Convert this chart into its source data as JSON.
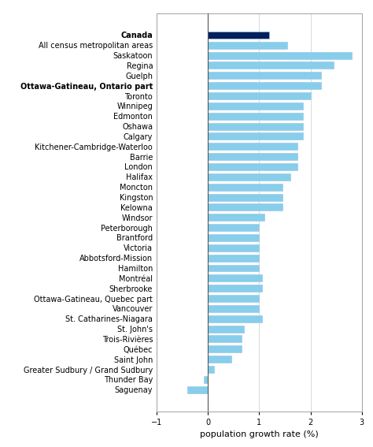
{
  "xlabel": "population growth rate (%)",
  "categories": [
    "Canada",
    "All census metropolitan areas",
    "Saskatoon",
    "Regina",
    "Guelph",
    "Ottawa-Gatineau, Ontario part",
    "Toronto",
    "Winnipeg",
    "Edmonton",
    "Oshawa",
    "Calgary",
    "Kitchener-Cambridge-Waterloo",
    "Barrie",
    "London",
    "Halifax",
    "Moncton",
    "Kingston",
    "Kelowna",
    "Windsor",
    "Peterborough",
    "Brantford",
    "Victoria",
    "Abbotsford-Mission",
    "Hamilton",
    "Montréal",
    "Sherbrooke",
    "Ottawa-Gatineau, Quebec part",
    "Vancouver",
    "St. Catharines-Niagara",
    "St. John's",
    "Trois-Rivières",
    "Québec",
    "Saint John",
    "Greater Sudbury / Grand Sudbury",
    "Thunder Bay",
    "Saguenay"
  ],
  "values": [
    1.2,
    1.55,
    2.8,
    2.45,
    2.2,
    2.2,
    2.0,
    1.85,
    1.85,
    1.85,
    1.85,
    1.75,
    1.75,
    1.75,
    1.6,
    1.45,
    1.45,
    1.45,
    1.1,
    1.0,
    1.0,
    1.0,
    1.0,
    1.0,
    1.05,
    1.05,
    1.0,
    1.0,
    1.05,
    0.7,
    0.65,
    0.65,
    0.45,
    0.12,
    -0.08,
    -0.4
  ],
  "bar_colors": [
    "#00205b",
    "#87ceeb",
    "#87ceeb",
    "#87ceeb",
    "#87ceeb",
    "#87ceeb",
    "#87ceeb",
    "#87ceeb",
    "#87ceeb",
    "#87ceeb",
    "#87ceeb",
    "#87ceeb",
    "#87ceeb",
    "#87ceeb",
    "#87ceeb",
    "#87ceeb",
    "#87ceeb",
    "#87ceeb",
    "#87ceeb",
    "#87ceeb",
    "#87ceeb",
    "#87ceeb",
    "#87ceeb",
    "#87ceeb",
    "#87ceeb",
    "#87ceeb",
    "#87ceeb",
    "#87ceeb",
    "#87ceeb",
    "#87ceeb",
    "#87ceeb",
    "#87ceeb",
    "#87ceeb",
    "#87ceeb",
    "#87ceeb",
    "#87ceeb"
  ],
  "bold_labels": [
    "Canada",
    "Ottawa-Gatineau, Ontario part"
  ],
  "xlim": [
    -1,
    3
  ],
  "xticks": [
    -1,
    0,
    1,
    2,
    3
  ],
  "background_color": "#ffffff",
  "grid_color": "#cccccc",
  "bar_height": 0.7,
  "label_fontsize": 7,
  "xlabel_fontsize": 8
}
